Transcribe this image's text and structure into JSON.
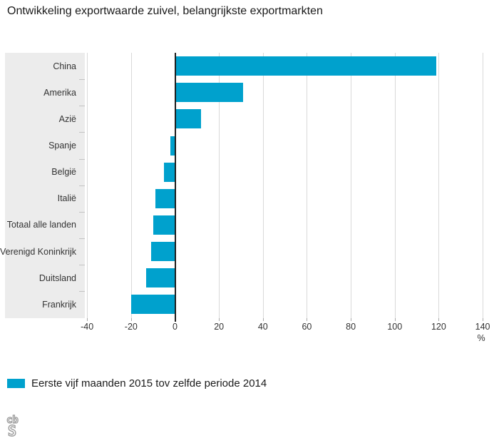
{
  "title": "Ontwikkeling exportwaarde zuivel, belangrijkste exportmarkten",
  "chart_data": {
    "type": "bar",
    "orientation": "horizontal",
    "title": "Ontwikkeling exportwaarde zuivel, belangrijkste exportmarkten",
    "categories": [
      "China",
      "Amerika",
      "Azië",
      "Spanje",
      "België",
      "Italië",
      "Totaal alle landen",
      "Verenigd Koninkrijk",
      "Duitsland",
      "Frankrijk"
    ],
    "values": [
      119,
      31,
      12,
      -2,
      -5,
      -9,
      -10,
      -11,
      -13,
      -20
    ],
    "series_name": "Eerste vijf maanden 2015 tov zelfde periode 2014",
    "xlabel": "%",
    "ylabel": "",
    "xlim": [
      -40,
      140
    ],
    "xticks": [
      -40,
      -20,
      0,
      20,
      40,
      60,
      80,
      100,
      120,
      140
    ],
    "grid": true,
    "legend_position": "bottom",
    "bar_color": "#00a1cd"
  },
  "legend": {
    "label": "Eerste vijf maanden 2015 tov zelfde periode 2014",
    "swatch_color": "#00a1cd"
  },
  "x_axis_unit": "%",
  "footer": {
    "logo_name": "cbs-logo",
    "logo_top": "cb",
    "logo_bottom": "S"
  },
  "colors": {
    "bar": "#00a1cd",
    "category_panel": "#ececec",
    "gridline": "#d9d9d9",
    "zero_line": "#1d1d1d",
    "text": "#1a1a1a",
    "logo_gray": "#9c9c9c"
  }
}
